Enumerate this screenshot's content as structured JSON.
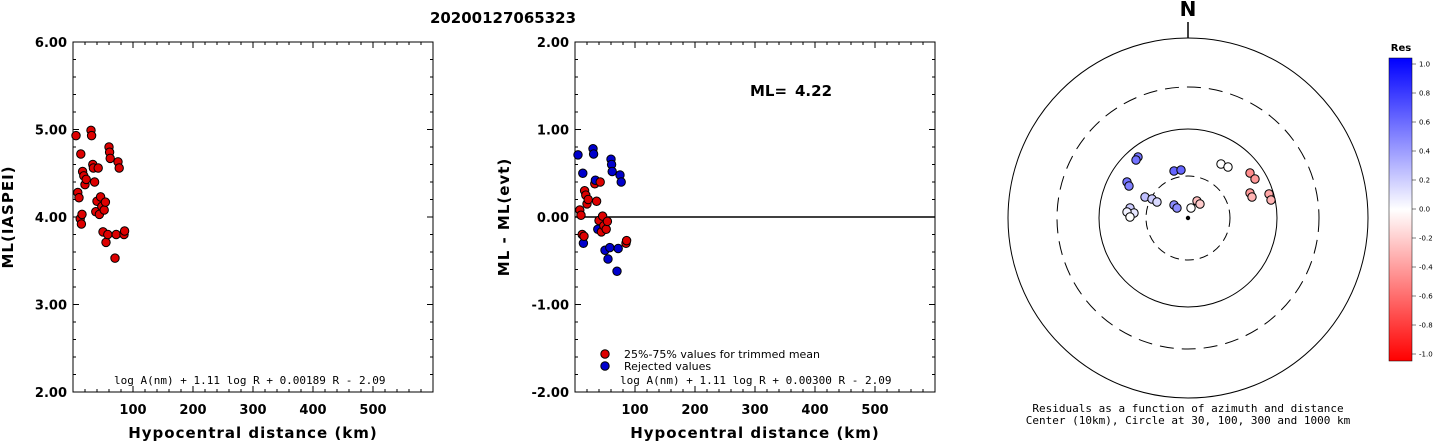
{
  "figure_title": "20200127065323",
  "chart_data": [
    {
      "type": "scatter",
      "ylabel": "ML(IASPEI)",
      "xlabel": "Hypocentral distance (km)",
      "xlim": [
        0,
        600
      ],
      "ylim": [
        2.0,
        6.0
      ],
      "yticks": [
        "6.00",
        "5.00",
        "4.00",
        "3.00",
        "2.00"
      ],
      "xticks": [
        "100",
        "200",
        "300",
        "400",
        "500"
      ],
      "formula": "log A(nm) + 1.11 log R + 0.00189 R - 2.09",
      "point_color": "#dd0000",
      "points": [
        [
          5,
          4.93
        ],
        [
          8,
          4.28
        ],
        [
          10,
          4.22
        ],
        [
          12,
          3.98
        ],
        [
          14,
          3.92
        ],
        [
          15,
          4.03
        ],
        [
          13,
          4.72
        ],
        [
          16,
          4.52
        ],
        [
          18,
          4.47
        ],
        [
          20,
          4.37
        ],
        [
          22,
          4.43
        ],
        [
          30,
          4.99
        ],
        [
          31,
          4.93
        ],
        [
          33,
          4.6
        ],
        [
          34,
          4.56
        ],
        [
          36,
          4.4
        ],
        [
          38,
          4.06
        ],
        [
          40,
          4.18
        ],
        [
          42,
          4.56
        ],
        [
          44,
          4.03
        ],
        [
          46,
          4.23
        ],
        [
          48,
          4.12
        ],
        [
          50,
          3.83
        ],
        [
          52,
          4.08
        ],
        [
          54,
          4.17
        ],
        [
          55,
          3.71
        ],
        [
          58,
          3.8
        ],
        [
          60,
          4.8
        ],
        [
          61,
          4.74
        ],
        [
          62,
          4.67
        ],
        [
          72,
          3.8
        ],
        [
          75,
          4.63
        ],
        [
          77,
          4.56
        ],
        [
          70,
          3.53
        ],
        [
          85,
          3.8
        ],
        [
          86,
          3.84
        ]
      ]
    },
    {
      "type": "scatter",
      "ylabel": "ML - ML(evt)",
      "xlabel": "Hypocentral distance (km)",
      "xlim": [
        0,
        600
      ],
      "ylim": [
        -2.0,
        2.0
      ],
      "yticks": [
        "2.00",
        "1.00",
        "0.00",
        "-1.00",
        "-2.00"
      ],
      "xticks": [
        "100",
        "200",
        "300",
        "400",
        "500"
      ],
      "formula": "log A(nm) + 1.11 log R + 0.00300 R - 2.09",
      "ml_label": "ML=",
      "ml_value": "4.22",
      "legend": [
        "25%-75% values for trimmed mean",
        "Rejected values"
      ],
      "colors": {
        "trimmed": "#dd0000",
        "rejected": "#0000cc"
      },
      "points": [
        [
          5,
          0.71,
          "r"
        ],
        [
          8,
          0.08,
          "t"
        ],
        [
          10,
          0.02,
          "t"
        ],
        [
          12,
          -0.2,
          "t"
        ],
        [
          14,
          -0.3,
          "r"
        ],
        [
          15,
          -0.22,
          "t"
        ],
        [
          13,
          0.5,
          "r"
        ],
        [
          16,
          0.3,
          "t"
        ],
        [
          18,
          0.25,
          "t"
        ],
        [
          20,
          0.15,
          "t"
        ],
        [
          22,
          0.2,
          "t"
        ],
        [
          30,
          0.78,
          "r"
        ],
        [
          31,
          0.72,
          "r"
        ],
        [
          33,
          0.38,
          "t"
        ],
        [
          34,
          0.42,
          "r"
        ],
        [
          36,
          0.18,
          "t"
        ],
        [
          38,
          -0.14,
          "r"
        ],
        [
          40,
          -0.04,
          "t"
        ],
        [
          42,
          0.4,
          "t"
        ],
        [
          44,
          -0.17,
          "t"
        ],
        [
          46,
          0.01,
          "t"
        ],
        [
          48,
          -0.1,
          "t"
        ],
        [
          50,
          -0.38,
          "r"
        ],
        [
          52,
          -0.14,
          "t"
        ],
        [
          54,
          -0.05,
          "t"
        ],
        [
          55,
          -0.48,
          "r"
        ],
        [
          58,
          -0.35,
          "r"
        ],
        [
          60,
          0.66,
          "r"
        ],
        [
          61,
          0.6,
          "r"
        ],
        [
          62,
          0.52,
          "r"
        ],
        [
          72,
          -0.36,
          "r"
        ],
        [
          75,
          0.48,
          "r"
        ],
        [
          77,
          0.4,
          "r"
        ],
        [
          70,
          -0.62,
          "r"
        ],
        [
          85,
          -0.3,
          "t"
        ],
        [
          86,
          -0.27,
          "t"
        ]
      ]
    }
  ],
  "polar": {
    "north": "N",
    "colorbar_title": "Res",
    "scale_labels": [
      "1.0",
      "0.8",
      "0.6",
      "0.4",
      "0.2",
      "0.0",
      "-0.2",
      "-0.4",
      "-0.6",
      "-0.8",
      "-1.0"
    ],
    "color_scale": {
      "max": "#0000ff",
      "zero": "#ffffff",
      "min": "#ff0000"
    },
    "caption_line1": "Residuals as a function of azimuth and distance",
    "caption_line2": "Center (10km), Circle at 30, 100, 300 and 1000 km",
    "epicenter": [
      1188,
      218
    ],
    "stations": [
      [
        1138,
        157,
        0.55
      ],
      [
        1136,
        160,
        0.55
      ],
      [
        1127,
        182,
        0.55
      ],
      [
        1129,
        186,
        0.5
      ],
      [
        1174,
        171,
        0.6
      ],
      [
        1181,
        170,
        0.6
      ],
      [
        1221,
        164,
        0.0
      ],
      [
        1228,
        167,
        0.0
      ],
      [
        1250,
        173,
        -0.45
      ],
      [
        1255,
        179,
        -0.4
      ],
      [
        1250,
        193,
        -0.4
      ],
      [
        1269,
        194,
        -0.35
      ],
      [
        1252,
        197,
        -0.3
      ],
      [
        1271,
        200,
        -0.3
      ],
      [
        1145,
        197,
        0.25
      ],
      [
        1152,
        199,
        0.2
      ],
      [
        1157,
        202,
        0.15
      ],
      [
        1174,
        205,
        0.45
      ],
      [
        1177,
        208,
        0.45
      ],
      [
        1197,
        201,
        -0.25
      ],
      [
        1200,
        204,
        -0.2
      ],
      [
        1191,
        208,
        0.0
      ],
      [
        1130,
        208,
        0.2
      ],
      [
        1134,
        213,
        0.1
      ],
      [
        1127,
        212,
        0.05
      ],
      [
        1130,
        217,
        0.0
      ]
    ]
  }
}
